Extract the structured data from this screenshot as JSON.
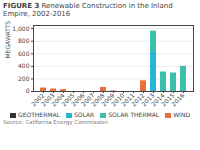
{
  "chart_data": {
    "type": "bar",
    "title": "FIGURE 3",
    "subtitle": "Renewable Construction in the Inland Empire, 2002-2016",
    "ylabel": "MEGAWATTS",
    "caption": "Source: California Energy Commission",
    "categories": [
      "2002",
      "2003",
      "2004",
      "2005",
      "2006",
      "2007",
      "2008",
      "2009",
      "2010",
      "2011",
      "2012",
      "2013",
      "2014",
      "2015",
      "2016"
    ],
    "series": [
      {
        "name": "GEOTHERMAL",
        "color": "#333333",
        "values": [
          0,
          0,
          0,
          0,
          0,
          0,
          0,
          0,
          0,
          0,
          0,
          0,
          0,
          0,
          0
        ]
      },
      {
        "name": "SOLAR",
        "color": "#29b5d8",
        "values": [
          0,
          0,
          0,
          0,
          0,
          0,
          0,
          0,
          0,
          0,
          0,
          620,
          0,
          0,
          0
        ]
      },
      {
        "name": "SOLAR THERMAL",
        "color": "#3dbfae",
        "values": [
          0,
          0,
          0,
          0,
          0,
          0,
          0,
          0,
          0,
          0,
          0,
          340,
          310,
          295,
          400
        ]
      },
      {
        "name": "WIND",
        "color": "#e8703a",
        "values": [
          55,
          40,
          30,
          0,
          0,
          0,
          65,
          10,
          0,
          0,
          170,
          0,
          0,
          0,
          0
        ]
      }
    ],
    "stacked": true,
    "ylim": [
      0,
      1050
    ],
    "yticks": [
      0,
      200,
      400,
      600,
      800,
      {
        "value": 1000,
        "label": "1,000"
      }
    ],
    "grid": true,
    "legend": "bottom"
  }
}
